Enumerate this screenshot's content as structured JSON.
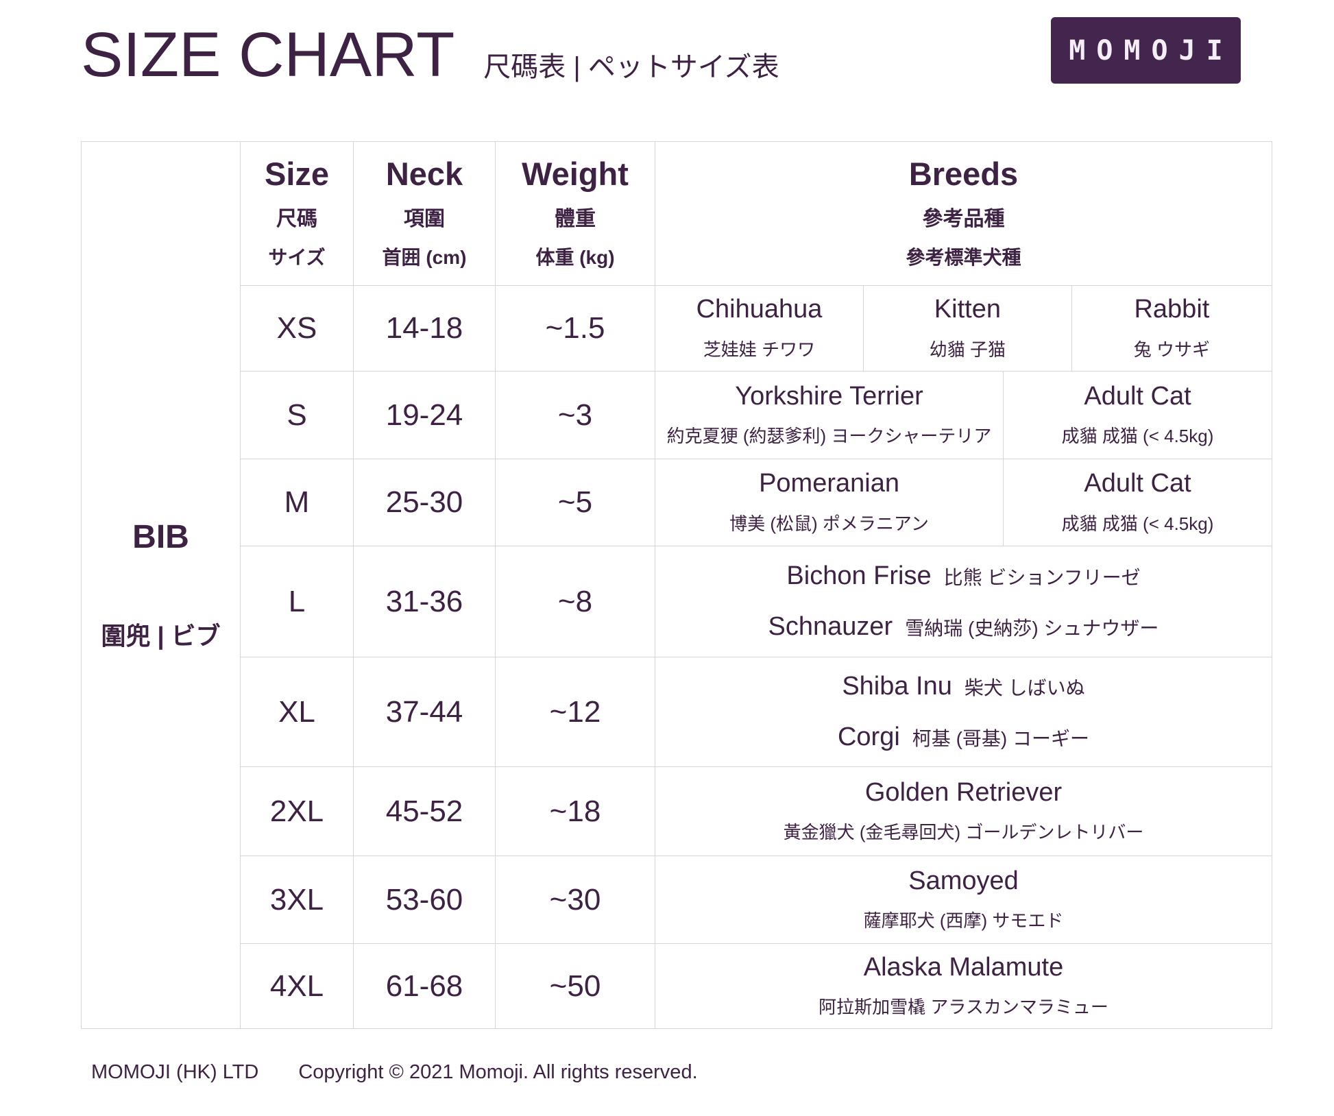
{
  "header": {
    "title": "SIZE CHART",
    "subtitle": "尺碼表 | ペットサイズ表",
    "logo": "MOMOJI"
  },
  "colors": {
    "accent_purple": "#3E2244",
    "logo_background": "#44254E",
    "table_border": "#D5D5D5"
  },
  "table": {
    "product": {
      "en": "BIB",
      "local": "圍兜 | ビブ"
    },
    "columns": [
      {
        "en": "Size",
        "zh": "尺碼",
        "ja": "サイズ"
      },
      {
        "en": "Neck",
        "zh": "項圍",
        "ja": "首囲 (cm)"
      },
      {
        "en": "Weight",
        "zh": "體重",
        "ja": "体重 (kg)"
      },
      {
        "en": "Breeds",
        "zh": "參考品種",
        "ja": "參考標準犬種"
      }
    ],
    "rows": [
      {
        "size": "XS",
        "neck": "14-18",
        "weight": "~1.5",
        "layout": "split3",
        "breeds": [
          {
            "en": "Chihuahua",
            "local": "芝娃娃 チワワ"
          },
          {
            "en": "Kitten",
            "local": "幼貓 子猫"
          },
          {
            "en": "Rabbit",
            "local": "兔 ウサギ"
          }
        ]
      },
      {
        "size": "S",
        "neck": "19-24",
        "weight": "~3",
        "layout": "split2",
        "breeds": [
          {
            "en": "Yorkshire Terrier",
            "local": "約克夏㹴 (約瑟爹利) ヨークシャーテリア"
          },
          {
            "en": "Adult Cat",
            "local": "成貓 成猫 (< 4.5kg)"
          }
        ]
      },
      {
        "size": "M",
        "neck": "25-30",
        "weight": "~5",
        "layout": "split2",
        "breeds": [
          {
            "en": "Pomeranian",
            "local": "博美 (松鼠) ポメラニアン"
          },
          {
            "en": "Adult Cat",
            "local": "成貓 成猫 (< 4.5kg)"
          }
        ]
      },
      {
        "size": "L",
        "neck": "31-36",
        "weight": "~8",
        "layout": "inline2",
        "breeds": [
          {
            "en": "Bichon Frise",
            "local": "比熊 ビションフリーゼ"
          },
          {
            "en": "Schnauzer",
            "local": "雪納瑞 (史納莎) シュナウザー"
          }
        ]
      },
      {
        "size": "XL",
        "neck": "37-44",
        "weight": "~12",
        "layout": "inline2",
        "breeds": [
          {
            "en": "Shiba Inu",
            "local": "柴犬 しばいぬ"
          },
          {
            "en": "Corgi",
            "local": "柯基 (哥基) コーギー"
          }
        ]
      },
      {
        "size": "2XL",
        "neck": "45-52",
        "weight": "~18",
        "layout": "single",
        "breeds": [
          {
            "en": "Golden Retriever",
            "local": "黃金獵犬 (金毛尋回犬) ゴールデンレトリバー"
          }
        ]
      },
      {
        "size": "3XL",
        "neck": "53-60",
        "weight": "~30",
        "layout": "single",
        "breeds": [
          {
            "en": "Samoyed",
            "local": "薩摩耶犬 (西摩) サモエド"
          }
        ]
      },
      {
        "size": "4XL",
        "neck": "61-68",
        "weight": "~50",
        "layout": "single",
        "breeds": [
          {
            "en": "Alaska Malamute",
            "local": "阿拉斯加雪橇 アラスカンマラミュー"
          }
        ]
      }
    ]
  },
  "footer": {
    "company": "MOMOJI (HK) LTD",
    "copyright": "Copyright © 2021 Momoji. All rights reserved."
  }
}
